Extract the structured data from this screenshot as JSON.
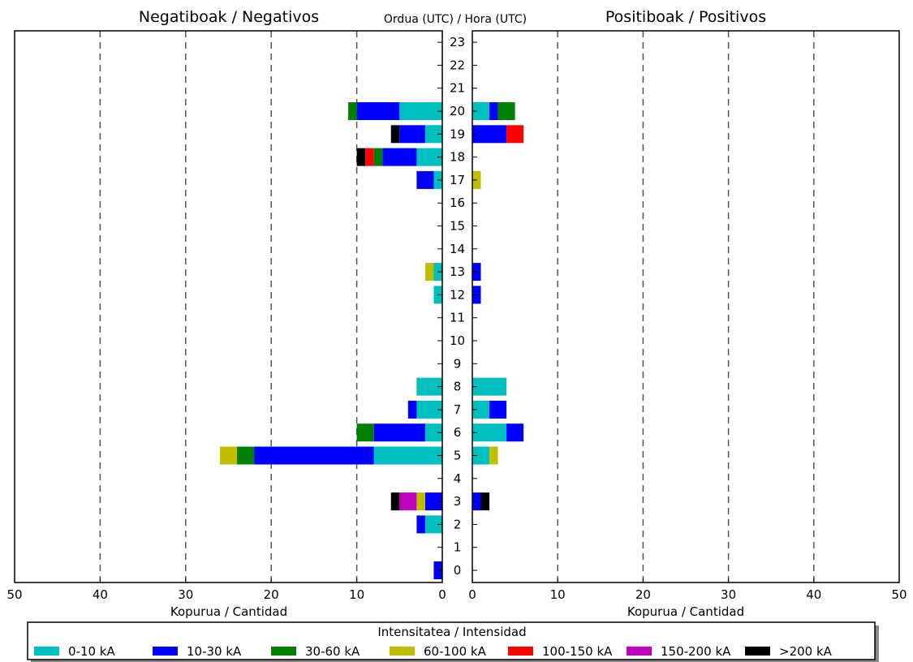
{
  "chart_data": {
    "type": "bar",
    "title_left": "Negatiboak / Negativos",
    "title_right": "Positiboak / Positivos",
    "center_label": "Ordua (UTC) / Hora (UTC)",
    "xlabel_left": "Kopurua / Cantidad",
    "xlabel_right": "Kopurua / Cantidad",
    "xlim": [
      0,
      50
    ],
    "xticks_left": [
      "50",
      "40",
      "30",
      "20",
      "10",
      "0"
    ],
    "xticks_right": [
      "0",
      "10",
      "20",
      "30",
      "40",
      "50"
    ],
    "grid": "vertical dashed",
    "categories": [
      "0",
      "1",
      "2",
      "3",
      "4",
      "5",
      "6",
      "7",
      "8",
      "9",
      "10",
      "11",
      "12",
      "13",
      "14",
      "15",
      "16",
      "17",
      "18",
      "19",
      "20",
      "21",
      "22",
      "23"
    ],
    "legend": {
      "title": "Intensitatea / Intensidad",
      "placement": "bottom"
    },
    "series": [
      {
        "name": "0-10 kA",
        "color": "#00bfbf",
        "negative": [
          0,
          0,
          2,
          0,
          0,
          8,
          2,
          3,
          3,
          0,
          0,
          0,
          1,
          1,
          0,
          0,
          0,
          1,
          3,
          2,
          5,
          0,
          0,
          0
        ],
        "positive": [
          0,
          0,
          0,
          0,
          0,
          2,
          4,
          2,
          4,
          0,
          0,
          0,
          0,
          0,
          0,
          0,
          0,
          0,
          0,
          0,
          2,
          0,
          0,
          0
        ]
      },
      {
        "name": "10-30 kA",
        "color": "#0000ff",
        "negative": [
          1,
          0,
          1,
          2,
          0,
          14,
          6,
          1,
          0,
          0,
          0,
          0,
          0,
          0,
          0,
          0,
          0,
          2,
          4,
          3,
          5,
          0,
          0,
          0
        ],
        "positive": [
          0,
          0,
          0,
          1,
          0,
          0,
          2,
          2,
          0,
          0,
          0,
          0,
          1,
          1,
          0,
          0,
          0,
          0,
          0,
          4,
          1,
          0,
          0,
          0
        ]
      },
      {
        "name": "30-60 kA",
        "color": "#008000",
        "negative": [
          0,
          0,
          0,
          0,
          0,
          2,
          2,
          0,
          0,
          0,
          0,
          0,
          0,
          0,
          0,
          0,
          0,
          0,
          1,
          0,
          1,
          0,
          0,
          0
        ],
        "positive": [
          0,
          0,
          0,
          0,
          0,
          0,
          0,
          0,
          0,
          0,
          0,
          0,
          0,
          0,
          0,
          0,
          0,
          0,
          0,
          0,
          2,
          0,
          0,
          0
        ]
      },
      {
        "name": "60-100 kA",
        "color": "#bfbf00",
        "negative": [
          0,
          0,
          0,
          1,
          0,
          2,
          0,
          0,
          0,
          0,
          0,
          0,
          0,
          1,
          0,
          0,
          0,
          0,
          0,
          0,
          0,
          0,
          0,
          0
        ],
        "positive": [
          0,
          0,
          0,
          0,
          0,
          1,
          0,
          0,
          0,
          0,
          0,
          0,
          0,
          0,
          0,
          0,
          0,
          1,
          0,
          0,
          0,
          0,
          0,
          0
        ]
      },
      {
        "name": "100-150 kA",
        "color": "#ff0000",
        "negative": [
          0,
          0,
          0,
          0,
          0,
          0,
          0,
          0,
          0,
          0,
          0,
          0,
          0,
          0,
          0,
          0,
          0,
          0,
          1,
          0,
          0,
          0,
          0,
          0
        ],
        "positive": [
          0,
          0,
          0,
          0,
          0,
          0,
          0,
          0,
          0,
          0,
          0,
          0,
          0,
          0,
          0,
          0,
          0,
          0,
          0,
          2,
          0,
          0,
          0,
          0
        ]
      },
      {
        "name": "150-200 kA",
        "color": "#bf00bf",
        "negative": [
          0,
          0,
          0,
          2,
          0,
          0,
          0,
          0,
          0,
          0,
          0,
          0,
          0,
          0,
          0,
          0,
          0,
          0,
          0,
          0,
          0,
          0,
          0,
          0
        ],
        "positive": [
          0,
          0,
          0,
          0,
          0,
          0,
          0,
          0,
          0,
          0,
          0,
          0,
          0,
          0,
          0,
          0,
          0,
          0,
          0,
          0,
          0,
          0,
          0,
          0
        ]
      },
      {
        "name": ">200 kA",
        "color": "#000000",
        "negative": [
          0,
          0,
          0,
          1,
          0,
          0,
          0,
          0,
          0,
          0,
          0,
          0,
          0,
          0,
          0,
          0,
          0,
          0,
          1,
          1,
          0,
          0,
          0,
          0
        ],
        "positive": [
          0,
          0,
          0,
          1,
          0,
          0,
          0,
          0,
          0,
          0,
          0,
          0,
          0,
          0,
          0,
          0,
          0,
          0,
          0,
          0,
          0,
          0,
          0,
          0
        ]
      }
    ]
  }
}
